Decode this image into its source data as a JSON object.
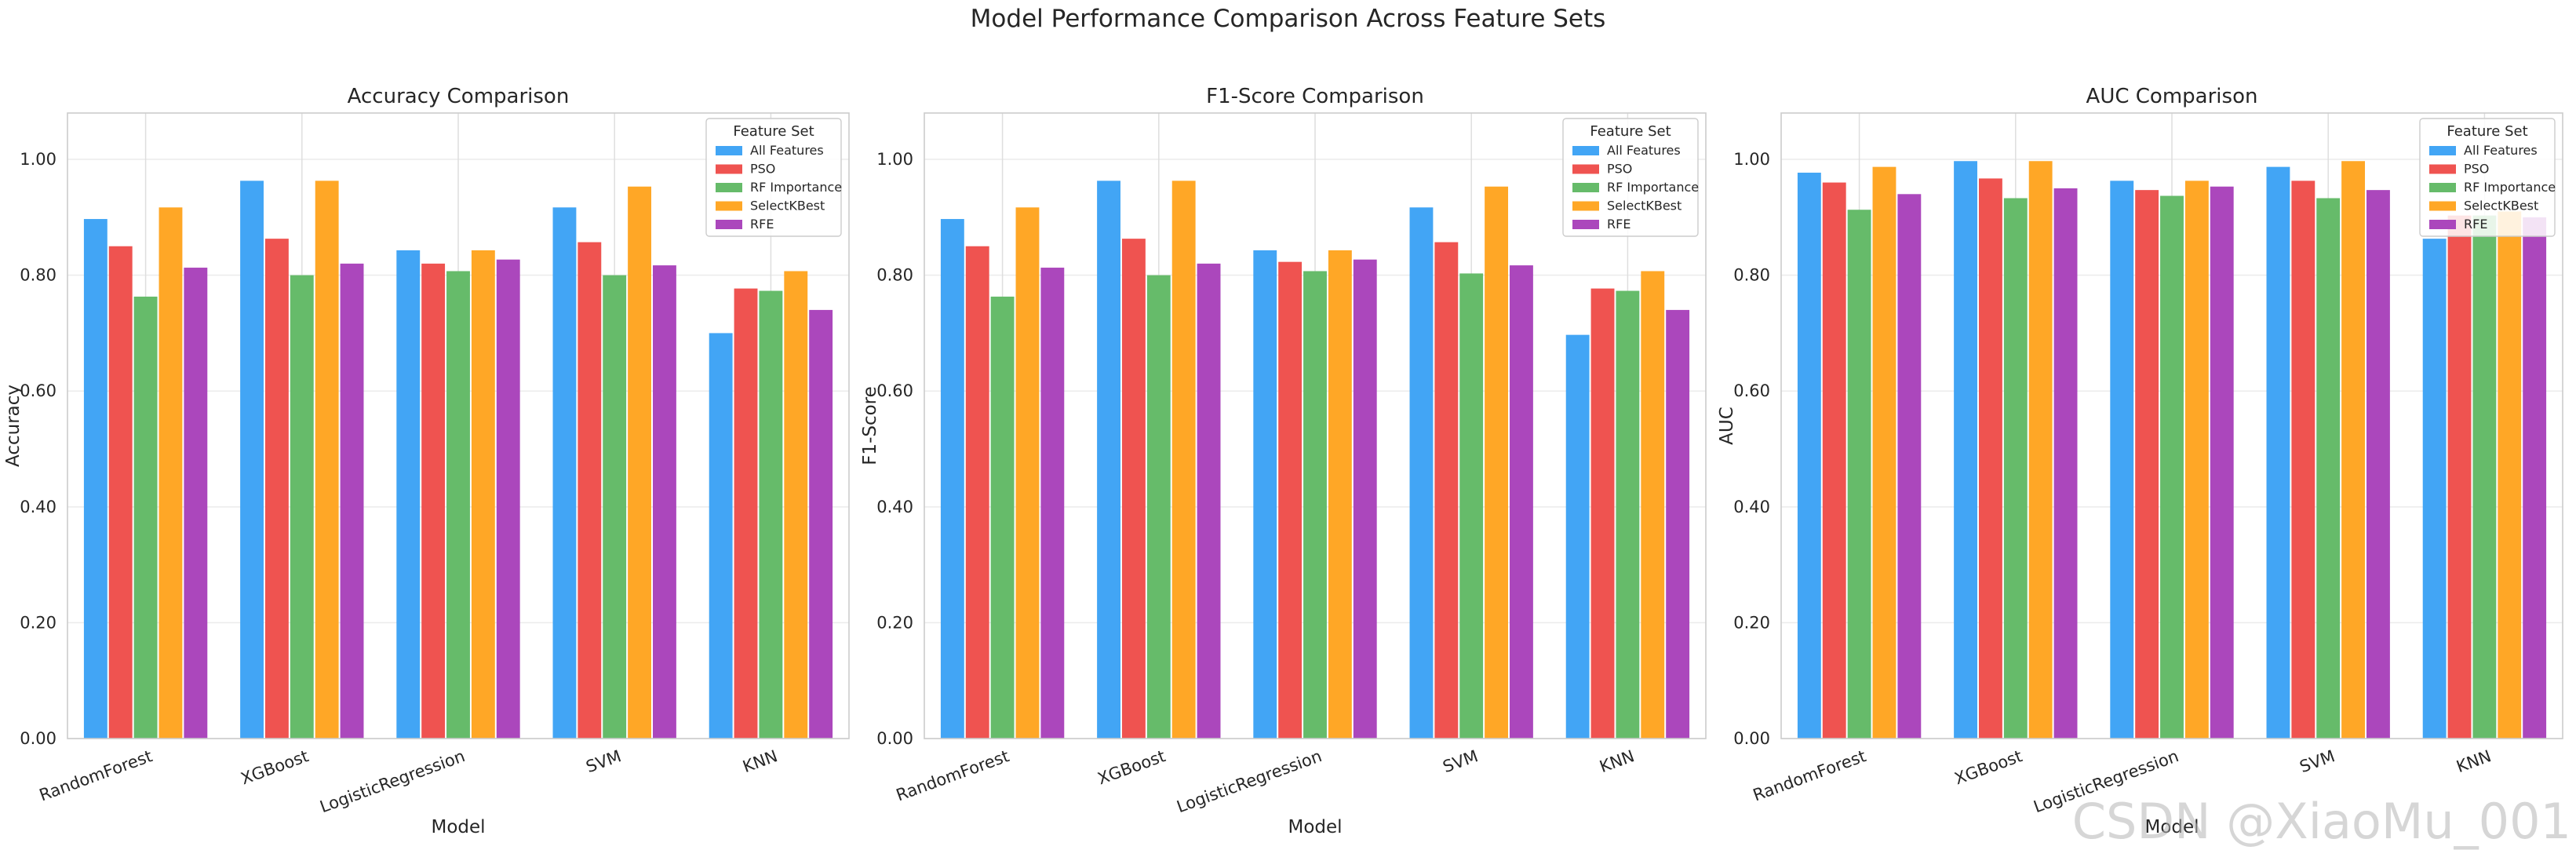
{
  "figure": {
    "title": "Model Performance Comparison Across Feature Sets",
    "watermark": "CSDN @XiaoMu_001",
    "xlabel": "Model",
    "legend_title": "Feature Set"
  },
  "chart_data": [
    {
      "type": "bar",
      "title": "Accuracy Comparison",
      "xlabel": "Model",
      "ylabel": "Accuracy",
      "ylim": [
        0,
        1.08
      ],
      "yticks": [
        "0.00",
        "0.20",
        "0.40",
        "0.60",
        "0.80",
        "1.00"
      ],
      "grid": true,
      "legend_title": "Feature Set",
      "legend_position": "upper right",
      "categories": [
        "RandomForest",
        "XGBoost",
        "LogisticRegression",
        "SVM",
        "KNN"
      ],
      "series": [
        {
          "name": "All Features",
          "color": "#42a5f5",
          "values": [
            0.897,
            0.963,
            0.843,
            0.917,
            0.7
          ]
        },
        {
          "name": "PSO",
          "color": "#ef5350",
          "values": [
            0.85,
            0.863,
            0.82,
            0.857,
            0.777
          ]
        },
        {
          "name": "RF Importance",
          "color": "#66bb6a",
          "values": [
            0.763,
            0.8,
            0.807,
            0.8,
            0.773
          ]
        },
        {
          "name": "SelectKBest",
          "color": "#ffa726",
          "values": [
            0.917,
            0.963,
            0.843,
            0.953,
            0.807
          ]
        },
        {
          "name": "RFE",
          "color": "#ab47bc",
          "values": [
            0.813,
            0.82,
            0.827,
            0.817,
            0.74
          ]
        }
      ]
    },
    {
      "type": "bar",
      "title": "F1-Score Comparison",
      "xlabel": "Model",
      "ylabel": "F1-Score",
      "ylim": [
        0,
        1.08
      ],
      "yticks": [
        "0.00",
        "0.20",
        "0.40",
        "0.60",
        "0.80",
        "1.00"
      ],
      "grid": true,
      "legend_title": "Feature Set",
      "legend_position": "upper right",
      "categories": [
        "RandomForest",
        "XGBoost",
        "LogisticRegression",
        "SVM",
        "KNN"
      ],
      "series": [
        {
          "name": "All Features",
          "color": "#42a5f5",
          "values": [
            0.897,
            0.963,
            0.843,
            0.917,
            0.697
          ]
        },
        {
          "name": "PSO",
          "color": "#ef5350",
          "values": [
            0.85,
            0.863,
            0.823,
            0.857,
            0.777
          ]
        },
        {
          "name": "RF Importance",
          "color": "#66bb6a",
          "values": [
            0.763,
            0.8,
            0.807,
            0.803,
            0.773
          ]
        },
        {
          "name": "SelectKBest",
          "color": "#ffa726",
          "values": [
            0.917,
            0.963,
            0.843,
            0.953,
            0.807
          ]
        },
        {
          "name": "RFE",
          "color": "#ab47bc",
          "values": [
            0.813,
            0.82,
            0.827,
            0.817,
            0.74
          ]
        }
      ]
    },
    {
      "type": "bar",
      "title": "AUC Comparison",
      "xlabel": "Model",
      "ylabel": "AUC",
      "ylim": [
        0,
        1.08
      ],
      "yticks": [
        "0.00",
        "0.20",
        "0.40",
        "0.60",
        "0.80",
        "1.00"
      ],
      "grid": true,
      "legend_title": "Feature Set",
      "legend_position": "upper right",
      "categories": [
        "RandomForest",
        "XGBoost",
        "LogisticRegression",
        "SVM",
        "KNN"
      ],
      "series": [
        {
          "name": "All Features",
          "color": "#42a5f5",
          "values": [
            0.977,
            0.997,
            0.963,
            0.987,
            0.863
          ]
        },
        {
          "name": "PSO",
          "color": "#ef5350",
          "values": [
            0.96,
            0.967,
            0.947,
            0.963,
            0.903
          ]
        },
        {
          "name": "RF Importance",
          "color": "#66bb6a",
          "values": [
            0.913,
            0.933,
            0.937,
            0.933,
            0.903
          ]
        },
        {
          "name": "SelectKBest",
          "color": "#ffa726",
          "values": [
            0.987,
            0.997,
            0.963,
            0.997,
            0.91
          ]
        },
        {
          "name": "RFE",
          "color": "#ab47bc",
          "values": [
            0.94,
            0.95,
            0.953,
            0.947,
            0.9
          ]
        }
      ]
    }
  ]
}
